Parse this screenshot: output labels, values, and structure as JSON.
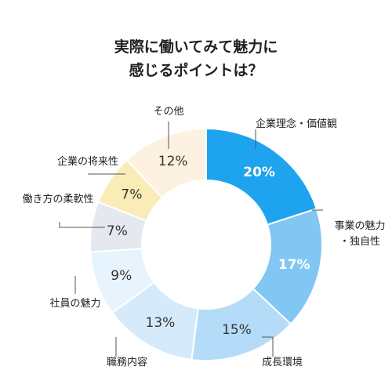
{
  "chart_data": {
    "type": "pie",
    "title": "実際に働いてみて魅力に\n感じるポイントは？",
    "categories": [
      "企業理念・価値観",
      "事業の魅力\n・独自性",
      "成長環境",
      "職務内容",
      "社員の魅力",
      "働き方の柔軟性",
      "企業の将来性",
      "その他"
    ],
    "values": [
      20,
      17,
      15,
      13,
      9,
      7,
      7,
      12
    ],
    "value_labels": [
      "20%",
      "17%",
      "15%",
      "13%",
      "9%",
      "7%",
      "7%",
      "12%"
    ],
    "colors": [
      "#1ea3ee",
      "#82c6f4",
      "#b4dcf9",
      "#d5eafb",
      "#e7f4fd",
      "#e5e8ee",
      "#f9ecb6",
      "#fdf2e2"
    ],
    "label_text_colors": [
      "#ffffff",
      "#ffffff",
      "#333333",
      "#333333",
      "#333333",
      "#333333",
      "#333333",
      "#333333"
    ]
  }
}
